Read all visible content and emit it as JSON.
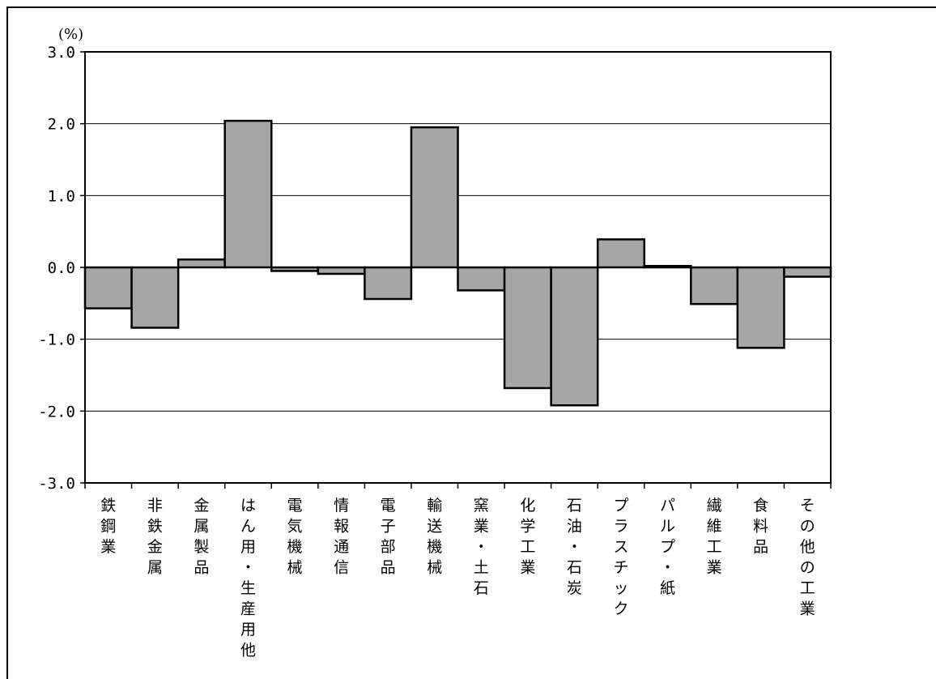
{
  "chart_data": {
    "type": "bar",
    "title": "",
    "unit_label": "(%)",
    "xlabel": "",
    "ylabel": "",
    "ylim": [
      -3.0,
      3.0
    ],
    "yticks": [
      3.0,
      2.0,
      1.0,
      0.0,
      -1.0,
      -2.0,
      -3.0
    ],
    "ytick_labels": [
      "3.0",
      "2.0",
      "1.0",
      "0.0",
      "-1.0",
      "-2.0",
      "-3.0"
    ],
    "grid": "horizontal",
    "legend": "none",
    "bar_color": "#a6a6a6",
    "categories": [
      "鉄鋼業",
      "非鉄金属",
      "金属製品",
      "はん用・生産用他",
      "電気機械",
      "情報通信",
      "電子部品",
      "輸送機械",
      "窯業・土石",
      "化学工業",
      "石油・石炭",
      "プラスチック",
      "パルプ・紙",
      "繊維工業",
      "食料品",
      "その他の工業"
    ],
    "values": [
      -0.57,
      -0.84,
      0.11,
      2.04,
      -0.05,
      -0.09,
      -0.44,
      1.95,
      -0.32,
      -1.68,
      -1.92,
      0.39,
      0.02,
      -0.51,
      -1.12,
      -0.13
    ]
  }
}
